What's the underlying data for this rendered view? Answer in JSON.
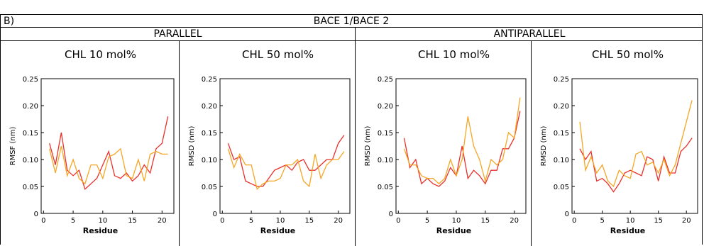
{
  "panel_label": "B)",
  "title": "BACE 1/BACE 2",
  "groups": [
    "PARALLEL",
    "ANTIPARALLEL"
  ],
  "chart_data": [
    {
      "type": "line",
      "title": "CHL 10 mol%",
      "xlabel": "Residue",
      "ylabel": "RMSF (nm)",
      "x": [
        1,
        2,
        3,
        4,
        5,
        6,
        7,
        8,
        9,
        10,
        11,
        12,
        13,
        14,
        15,
        16,
        17,
        18,
        19,
        20,
        21
      ],
      "xlim": [
        -0.4,
        22
      ],
      "xticks": [
        0,
        5,
        10,
        15,
        20
      ],
      "ylim": [
        0,
        0.25
      ],
      "yticks": [
        0,
        0.05,
        {
          "value": 0.1,
          "label": "0.10"
        },
        0.15,
        {
          "value": 0.2,
          "label": "0.20"
        },
        0.25
      ],
      "series": [
        {
          "color": "#e8302a",
          "values": [
            0.13,
            0.09,
            0.15,
            0.08,
            0.07,
            0.08,
            0.045,
            0.055,
            0.065,
            0.09,
            0.115,
            0.07,
            0.065,
            0.075,
            0.06,
            0.07,
            0.09,
            0.075,
            0.12,
            0.13,
            0.18
          ]
        },
        {
          "color": "#f5a623",
          "values": [
            0.12,
            0.075,
            0.125,
            0.07,
            0.1,
            0.065,
            0.055,
            0.09,
            0.09,
            0.065,
            0.105,
            0.11,
            0.12,
            0.07,
            0.065,
            0.1,
            0.06,
            0.11,
            0.115,
            0.11,
            0.11
          ]
        }
      ]
    },
    {
      "type": "line",
      "title": "CHL 50 mol%",
      "xlabel": "Residue",
      "ylabel": "RMSD (nm)",
      "x": [
        1,
        2,
        3,
        4,
        5,
        6,
        7,
        8,
        9,
        10,
        11,
        12,
        13,
        14,
        15,
        16,
        17,
        18,
        19,
        20,
        21
      ],
      "xlim": [
        -0.4,
        22
      ],
      "xticks": [
        0,
        5,
        10,
        15,
        20
      ],
      "ylim": [
        0,
        0.25
      ],
      "yticks": [
        0,
        0.05,
        {
          "value": 0.1,
          "label": "0.10"
        },
        0.15,
        {
          "value": 0.2,
          "label": "0.20"
        },
        0.25
      ],
      "series": [
        {
          "color": "#e8302a",
          "values": [
            0.13,
            0.1,
            0.105,
            0.06,
            0.055,
            0.05,
            0.05,
            0.065,
            0.08,
            0.085,
            0.09,
            0.08,
            0.095,
            0.1,
            0.08,
            0.08,
            0.09,
            0.1,
            0.1,
            0.13,
            0.145
          ]
        },
        {
          "color": "#f5a623",
          "values": [
            0.12,
            0.085,
            0.11,
            0.09,
            0.09,
            0.045,
            0.055,
            0.06,
            0.06,
            0.065,
            0.09,
            0.09,
            0.1,
            0.06,
            0.05,
            0.11,
            0.065,
            0.09,
            0.1,
            0.1,
            0.115
          ]
        }
      ]
    },
    {
      "type": "line",
      "title": "CHL 10 mol%",
      "xlabel": "Residue",
      "ylabel": "RMSD (nm)",
      "x": [
        1,
        2,
        3,
        4,
        5,
        6,
        7,
        8,
        9,
        10,
        11,
        12,
        13,
        14,
        15,
        16,
        17,
        18,
        19,
        20,
        21
      ],
      "xlim": [
        -0.4,
        22
      ],
      "xticks": [
        0,
        5,
        10,
        15,
        20
      ],
      "ylim": [
        0,
        0.25
      ],
      "yticks": [
        0,
        0.05,
        {
          "value": 0.1,
          "label": "0.10"
        },
        0.15,
        {
          "value": 0.2,
          "label": "0.20"
        },
        0.25
      ],
      "series": [
        {
          "color": "#e8302a",
          "values": [
            0.14,
            0.085,
            0.1,
            0.055,
            0.065,
            0.055,
            0.05,
            0.06,
            0.085,
            0.07,
            0.125,
            0.065,
            0.08,
            0.07,
            0.055,
            0.08,
            0.08,
            0.12,
            0.12,
            0.14,
            0.19
          ]
        },
        {
          "color": "#f5a623",
          "values": [
            0.12,
            0.09,
            0.09,
            0.07,
            0.065,
            0.065,
            0.055,
            0.065,
            0.1,
            0.07,
            0.1,
            0.18,
            0.125,
            0.1,
            0.06,
            0.1,
            0.09,
            0.1,
            0.15,
            0.14,
            0.215
          ]
        }
      ]
    },
    {
      "type": "line",
      "title": "CHL 50 mol%",
      "xlabel": "Residue",
      "ylabel": "RMSD (nm)",
      "x": [
        1,
        2,
        3,
        4,
        5,
        6,
        7,
        8,
        9,
        10,
        11,
        12,
        13,
        14,
        15,
        16,
        17,
        18,
        19,
        20,
        21
      ],
      "xlim": [
        -0.4,
        22
      ],
      "xticks": [
        0,
        5,
        10,
        15,
        20
      ],
      "ylim": [
        0,
        0.25
      ],
      "yticks": [
        0,
        0.05,
        {
          "value": 0.1,
          "label": "0.10"
        },
        0.15,
        {
          "value": 0.2,
          "label": "0.20"
        },
        0.25
      ],
      "series": [
        {
          "color": "#e8302a",
          "values": [
            0.12,
            0.1,
            0.115,
            0.06,
            0.065,
            0.055,
            0.04,
            0.055,
            0.075,
            0.08,
            0.075,
            0.07,
            0.105,
            0.1,
            0.06,
            0.105,
            0.075,
            0.075,
            0.115,
            0.125,
            0.14
          ]
        },
        {
          "color": "#f5a623",
          "values": [
            0.17,
            0.08,
            0.105,
            0.075,
            0.09,
            0.06,
            0.05,
            0.08,
            0.07,
            0.065,
            0.11,
            0.115,
            0.09,
            0.095,
            0.075,
            0.1,
            0.07,
            0.09,
            0.13,
            0.17,
            0.21
          ]
        }
      ]
    }
  ]
}
